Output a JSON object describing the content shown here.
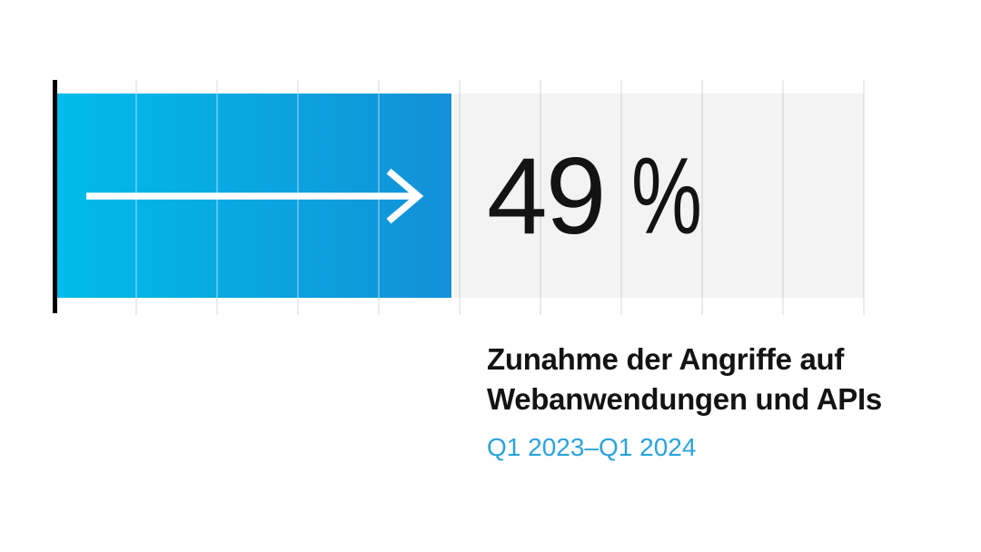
{
  "chart_data": {
    "type": "bar",
    "orientation": "horizontal",
    "title": "Zunahme der Angriffe auf Webanwendungen und APIs",
    "title_lines": [
      "Zunahme der Angriffe auf",
      "Webanwendungen und APIs"
    ],
    "subtitle": "Q1 2023–Q1 2024",
    "series": [
      {
        "name": "Zunahme der Angriffe auf Webanwendungen und APIs",
        "value": 49
      }
    ],
    "value": 49,
    "value_label": "49",
    "unit_label": "%",
    "axis_range": [
      0,
      100
    ],
    "gridlines": 10,
    "gridline_interval_percent": 10,
    "legend": "none",
    "grid": "on",
    "arrow_icon": "right-arrow",
    "colors": {
      "bar_gradient_left": "#00bce9",
      "bar_gradient_right": "#1390d8",
      "track": "#f3f3f3",
      "gridline": "#e4e4e4",
      "axis": "#000000",
      "value_text": "#131313",
      "title_text": "#131313",
      "subtitle_text": "#2aa3dc",
      "arrow": "#ffffff",
      "background": "#ffffff"
    }
  }
}
